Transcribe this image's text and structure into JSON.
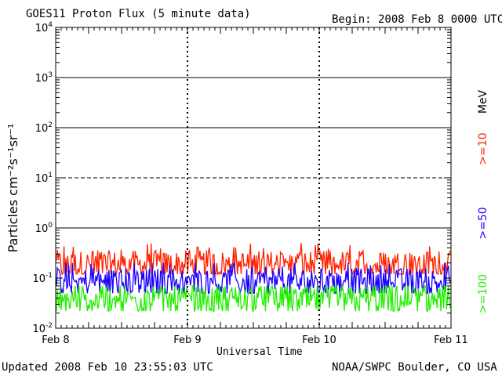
{
  "header": {
    "title": "GOES11 Proton Flux (5 minute data)",
    "begin": "Begin: 2008 Feb 8 0000 UTC"
  },
  "footer": {
    "updated": "Updated 2008 Feb 10 23:55:03 UTC",
    "source": "NOAA/SWPC Boulder, CO USA"
  },
  "colors": {
    "ge10": "#ff2200",
    "ge50": "#1a00ff",
    "ge100": "#22ee00",
    "axis": "#000000"
  },
  "chart_data": {
    "type": "line",
    "title": "GOES11 Proton Flux (5 minute data)",
    "xlabel": "Universal Time",
    "ylabel": "Particles cm⁻²s⁻¹sr⁻¹",
    "yscale": "log",
    "ylim": [
      0.01,
      10000
    ],
    "y_ticks": [
      {
        "value": 10000,
        "base": "10",
        "exp": "4"
      },
      {
        "value": 1000,
        "base": "10",
        "exp": "3"
      },
      {
        "value": 100,
        "base": "10",
        "exp": "2"
      },
      {
        "value": 10,
        "base": "10",
        "exp": "1"
      },
      {
        "value": 1,
        "base": "10",
        "exp": "0"
      },
      {
        "value": 0.1,
        "base": "10",
        "exp": "-1"
      },
      {
        "value": 0.01,
        "base": "10",
        "exp": "-2"
      }
    ],
    "x_ticks": [
      "Feb 8",
      "Feb 9",
      "Feb 10",
      "Feb 11"
    ],
    "xlim": [
      "2008-02-08",
      "2008-02-11"
    ],
    "grid": {
      "solid_lines": [
        1000,
        100,
        1
      ],
      "dashed_lines": [
        10
      ]
    },
    "legend_unit": "MeV",
    "series": [
      {
        "name": ">=10",
        "color": "#ff2200",
        "typical_value": 0.18,
        "range": [
          0.12,
          0.5
        ]
      },
      {
        "name": ">=50",
        "color": "#1a00ff",
        "typical_value": 0.08,
        "range": [
          0.05,
          0.2
        ]
      },
      {
        "name": ">=100",
        "color": "#22ee00",
        "typical_value": 0.035,
        "range": [
          0.022,
          0.07
        ]
      }
    ]
  }
}
